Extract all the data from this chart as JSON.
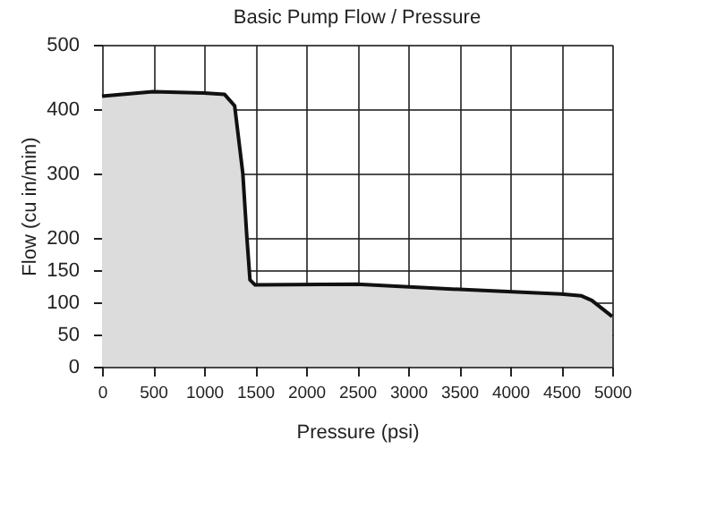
{
  "chart_data": {
    "type": "area",
    "title": "Basic Pump Flow / Pressure",
    "xlabel": "Pressure (psi)",
    "ylabel": "Flow (cu in/min)",
    "x": [
      0,
      500,
      1000,
      1200,
      1300,
      1380,
      1420,
      1450,
      1500,
      2500,
      3500,
      4500,
      4700,
      4800,
      5000
    ],
    "series": [
      {
        "color": "#dcdcdc",
        "values": [
          420,
          427,
          425,
          423,
          405,
          300,
          200,
          135,
          127,
          128,
          120,
          113,
          110,
          103,
          78
        ]
      }
    ],
    "xlim": [
      0,
      5000
    ],
    "xticks": [
      0,
      500,
      1000,
      1500,
      2000,
      2500,
      3000,
      3500,
      4000,
      4500,
      5000
    ],
    "ylim": [
      0,
      500
    ],
    "yticks": [
      0,
      50,
      100,
      150,
      200,
      300,
      400,
      500
    ],
    "grid": true
  }
}
